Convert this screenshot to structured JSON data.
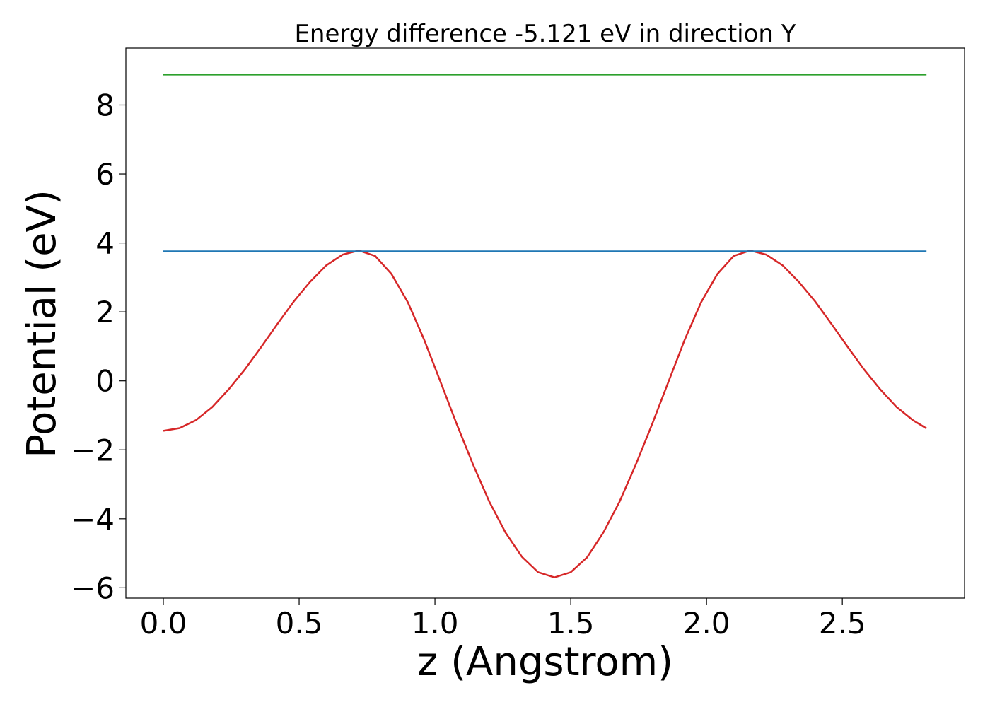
{
  "chart_data": {
    "type": "line",
    "title": "Energy difference -5.121 eV in direction Y",
    "xlabel": "z (Angstrom)",
    "ylabel": "Potential (eV)",
    "xlim": [
      -0.138,
      2.95
    ],
    "ylim": [
      -6.3,
      9.65
    ],
    "x_ticks": [
      0.0,
      0.5,
      1.0,
      1.5,
      2.0,
      2.5
    ],
    "x_tick_labels": [
      "0.0",
      "0.5",
      "1.0",
      "1.5",
      "2.0",
      "2.5"
    ],
    "y_ticks": [
      -6,
      -4,
      -2,
      0,
      2,
      4,
      6,
      8
    ],
    "y_tick_labels": [
      "−6",
      "−4",
      "−2",
      "0",
      "2",
      "4",
      "6",
      "8"
    ],
    "grid": false,
    "series": [
      {
        "color": "#d62728",
        "x": [
          0.0,
          0.06,
          0.12,
          0.18,
          0.24,
          0.3,
          0.36,
          0.42,
          0.48,
          0.54,
          0.6,
          0.66,
          0.72,
          0.78,
          0.84,
          0.9,
          0.96,
          1.02,
          1.08,
          1.14,
          1.2,
          1.26,
          1.32,
          1.38,
          1.44,
          1.5,
          1.56,
          1.62,
          1.68,
          1.74,
          1.8,
          1.86,
          1.92,
          1.98,
          2.04,
          2.1,
          2.16,
          2.22,
          2.28,
          2.34,
          2.4,
          2.46,
          2.52,
          2.58,
          2.64,
          2.7,
          2.76,
          2.81
        ],
        "y": [
          -1.45,
          -1.37,
          -1.14,
          -0.76,
          -0.25,
          0.33,
          0.98,
          1.65,
          2.3,
          2.87,
          3.35,
          3.66,
          3.78,
          3.62,
          3.1,
          2.28,
          1.2,
          -0.02,
          -1.25,
          -2.42,
          -3.5,
          -4.4,
          -5.1,
          -5.55,
          -5.7,
          -5.55,
          -5.12,
          -4.4,
          -3.5,
          -2.42,
          -1.25,
          -0.02,
          1.2,
          2.28,
          3.1,
          3.62,
          3.78,
          3.66,
          3.35,
          2.87,
          2.3,
          1.65,
          0.98,
          0.33,
          -0.25,
          -0.76,
          -1.14,
          -1.38
        ]
      },
      {
        "color": "#1f77b4",
        "x": [
          0.0,
          2.81
        ],
        "y": [
          3.76,
          3.76
        ]
      },
      {
        "color": "#2ca02c",
        "x": [
          0.0,
          2.81
        ],
        "y": [
          8.88,
          8.88
        ]
      }
    ]
  }
}
